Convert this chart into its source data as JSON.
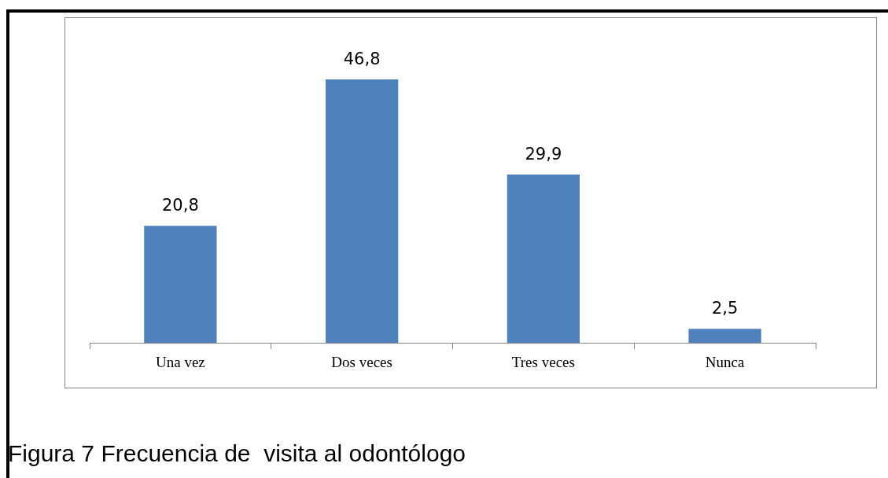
{
  "chart_data": {
    "type": "bar",
    "title": "Figura 7 Frecuencia de  visita al odontólogo",
    "categories": [
      "Una vez",
      "Dos veces",
      "Tres veces",
      "Nunca"
    ],
    "values": [
      20.8,
      46.8,
      29.9,
      2.5
    ],
    "value_labels": [
      "20,8",
      "46,8",
      "29,9",
      "2,5"
    ],
    "color": "#4f81bd",
    "grid": false,
    "legend": false
  }
}
